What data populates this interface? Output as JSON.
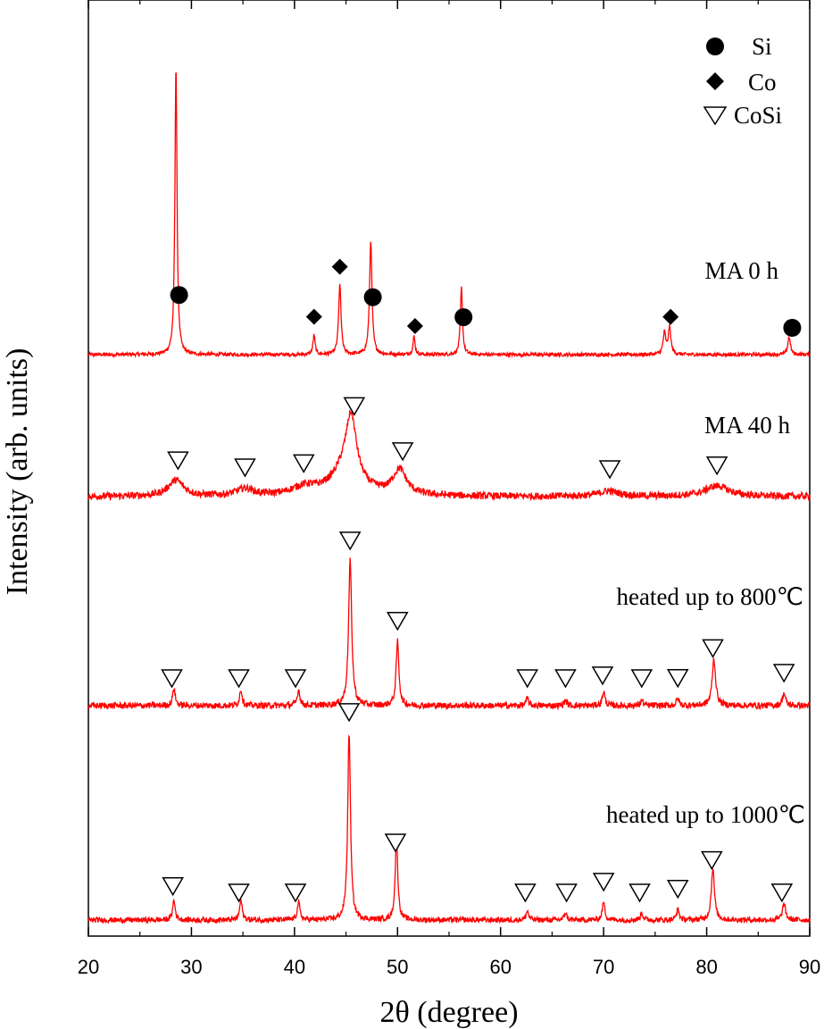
{
  "chart_data": {
    "type": "line",
    "xlabel": "2θ (degree)",
    "ylabel": "Intensity (arb. units)",
    "xlim": [
      20,
      90
    ],
    "xticks": [
      20,
      30,
      40,
      50,
      60,
      70,
      80,
      90
    ],
    "grid": false,
    "line_color": "#ff0000",
    "legend_position": "top-right",
    "legend": [
      {
        "name": "Si",
        "marker": "filled-circle"
      },
      {
        "name": "Co",
        "marker": "filled-diamond"
      },
      {
        "name": "CoSi",
        "marker": "open-down-triangle"
      }
    ],
    "series": [
      {
        "name": "MA 0 h",
        "baseline": 0,
        "peaks": [
          {
            "x": 28.5,
            "height": 325,
            "width": 0.12,
            "phase": "Si"
          },
          {
            "x": 41.9,
            "height": 22,
            "width": 0.12,
            "phase": "Co"
          },
          {
            "x": 44.4,
            "height": 78,
            "width": 0.14,
            "phase": "Co"
          },
          {
            "x": 47.4,
            "height": 128,
            "width": 0.14,
            "phase": "Si"
          },
          {
            "x": 51.6,
            "height": 20,
            "width": 0.12,
            "phase": "Co"
          },
          {
            "x": 56.2,
            "height": 75,
            "width": 0.12,
            "phase": "Si"
          },
          {
            "x": 75.9,
            "height": 24,
            "width": 0.15,
            "phase": "Co"
          },
          {
            "x": 76.4,
            "height": 30,
            "width": 0.15,
            "phase": "Co"
          },
          {
            "x": 88.0,
            "height": 20,
            "width": 0.15,
            "phase": "Si"
          }
        ]
      },
      {
        "name": "MA 40 h",
        "baseline": 0,
        "peaks": [
          {
            "x": 28.5,
            "height": 18,
            "width": 0.9,
            "phase": "CoSi"
          },
          {
            "x": 35.2,
            "height": 8,
            "width": 1.0,
            "phase": "CoSi"
          },
          {
            "x": 41.0,
            "height": 9,
            "width": 1.5,
            "phase": "CoSi"
          },
          {
            "x": 45.5,
            "height": 66,
            "width": 0.6,
            "phase": "CoSi"
          },
          {
            "x": 45.0,
            "height": 30,
            "width": 1.6,
            "phase": "CoSi"
          },
          {
            "x": 50.2,
            "height": 28,
            "width": 0.8,
            "phase": "CoSi"
          },
          {
            "x": 70.5,
            "height": 6,
            "width": 1.2,
            "phase": "CoSi"
          },
          {
            "x": 81.0,
            "height": 12,
            "width": 1.4,
            "phase": "CoSi"
          }
        ]
      },
      {
        "name": "heated up to 800℃",
        "baseline": 0,
        "peaks": [
          {
            "x": 28.3,
            "height": 20,
            "width": 0.15,
            "phase": "CoSi"
          },
          {
            "x": 34.8,
            "height": 18,
            "width": 0.15,
            "phase": "CoSi"
          },
          {
            "x": 40.4,
            "height": 18,
            "width": 0.15,
            "phase": "CoSi"
          },
          {
            "x": 45.4,
            "height": 162,
            "width": 0.18,
            "phase": "CoSi"
          },
          {
            "x": 50.0,
            "height": 72,
            "width": 0.16,
            "phase": "CoSi"
          },
          {
            "x": 62.6,
            "height": 8,
            "width": 0.15,
            "phase": "CoSi"
          },
          {
            "x": 66.3,
            "height": 6,
            "width": 0.15,
            "phase": "CoSi"
          },
          {
            "x": 70.0,
            "height": 16,
            "width": 0.15,
            "phase": "CoSi"
          },
          {
            "x": 73.7,
            "height": 6,
            "width": 0.15,
            "phase": "CoSi"
          },
          {
            "x": 77.2,
            "height": 8,
            "width": 0.15,
            "phase": "CoSi"
          },
          {
            "x": 80.7,
            "height": 52,
            "width": 0.2,
            "phase": "CoSi"
          },
          {
            "x": 87.5,
            "height": 14,
            "width": 0.18,
            "phase": "CoSi"
          }
        ]
      },
      {
        "name": "heated up to 1000℃",
        "baseline": 0,
        "peaks": [
          {
            "x": 28.3,
            "height": 22,
            "width": 0.15,
            "phase": "CoSi"
          },
          {
            "x": 34.8,
            "height": 22,
            "width": 0.15,
            "phase": "CoSi"
          },
          {
            "x": 40.4,
            "height": 20,
            "width": 0.15,
            "phase": "CoSi"
          },
          {
            "x": 45.3,
            "height": 210,
            "width": 0.16,
            "phase": "CoSi"
          },
          {
            "x": 49.9,
            "height": 92,
            "width": 0.15,
            "phase": "CoSi"
          },
          {
            "x": 62.6,
            "height": 10,
            "width": 0.15,
            "phase": "CoSi"
          },
          {
            "x": 66.3,
            "height": 8,
            "width": 0.15,
            "phase": "CoSi"
          },
          {
            "x": 70.0,
            "height": 20,
            "width": 0.15,
            "phase": "CoSi"
          },
          {
            "x": 73.7,
            "height": 8,
            "width": 0.15,
            "phase": "CoSi"
          },
          {
            "x": 77.2,
            "height": 12,
            "width": 0.15,
            "phase": "CoSi"
          },
          {
            "x": 80.6,
            "height": 58,
            "width": 0.18,
            "phase": "CoSi"
          },
          {
            "x": 87.5,
            "height": 18,
            "width": 0.18,
            "phase": "CoSi"
          }
        ]
      }
    ],
    "markers": [
      {
        "series": 0,
        "x": 28.8,
        "phase": "Si"
      },
      {
        "series": 0,
        "x": 41.9,
        "phase": "Co"
      },
      {
        "series": 0,
        "x": 44.4,
        "phase": "Co"
      },
      {
        "series": 0,
        "x": 47.6,
        "phase": "Si"
      },
      {
        "series": 0,
        "x": 51.7,
        "phase": "Co"
      },
      {
        "series": 0,
        "x": 56.4,
        "phase": "Si"
      },
      {
        "series": 0,
        "x": 76.5,
        "phase": "Co"
      },
      {
        "series": 0,
        "x": 88.3,
        "phase": "Si"
      },
      {
        "series": 1,
        "x": 28.7,
        "phase": "CoSi"
      },
      {
        "series": 1,
        "x": 35.2,
        "phase": "CoSi"
      },
      {
        "series": 1,
        "x": 40.9,
        "phase": "CoSi"
      },
      {
        "series": 1,
        "x": 45.8,
        "phase": "CoSi"
      },
      {
        "series": 1,
        "x": 50.5,
        "phase": "CoSi"
      },
      {
        "series": 1,
        "x": 70.6,
        "phase": "CoSi"
      },
      {
        "series": 1,
        "x": 81.0,
        "phase": "CoSi"
      },
      {
        "series": 2,
        "x": 28.1,
        "phase": "CoSi"
      },
      {
        "series": 2,
        "x": 34.6,
        "phase": "CoSi"
      },
      {
        "series": 2,
        "x": 40.1,
        "phase": "CoSi"
      },
      {
        "series": 2,
        "x": 45.4,
        "phase": "CoSi"
      },
      {
        "series": 2,
        "x": 50.0,
        "phase": "CoSi"
      },
      {
        "series": 2,
        "x": 62.6,
        "phase": "CoSi"
      },
      {
        "series": 2,
        "x": 66.3,
        "phase": "CoSi"
      },
      {
        "series": 2,
        "x": 69.9,
        "phase": "CoSi"
      },
      {
        "series": 2,
        "x": 73.7,
        "phase": "CoSi"
      },
      {
        "series": 2,
        "x": 77.2,
        "phase": "CoSi"
      },
      {
        "series": 2,
        "x": 80.6,
        "phase": "CoSi"
      },
      {
        "series": 2,
        "x": 87.5,
        "phase": "CoSi"
      },
      {
        "series": 3,
        "x": 28.2,
        "phase": "CoSi"
      },
      {
        "series": 3,
        "x": 34.6,
        "phase": "CoSi"
      },
      {
        "series": 3,
        "x": 40.1,
        "phase": "CoSi"
      },
      {
        "series": 3,
        "x": 45.3,
        "phase": "CoSi"
      },
      {
        "series": 3,
        "x": 49.8,
        "phase": "CoSi"
      },
      {
        "series": 3,
        "x": 62.4,
        "phase": "CoSi"
      },
      {
        "series": 3,
        "x": 66.4,
        "phase": "CoSi"
      },
      {
        "series": 3,
        "x": 70.0,
        "phase": "CoSi"
      },
      {
        "series": 3,
        "x": 73.5,
        "phase": "CoSi"
      },
      {
        "series": 3,
        "x": 77.2,
        "phase": "CoSi"
      },
      {
        "series": 3,
        "x": 80.5,
        "phase": "CoSi"
      },
      {
        "series": 3,
        "x": 87.3,
        "phase": "CoSi"
      }
    ]
  }
}
